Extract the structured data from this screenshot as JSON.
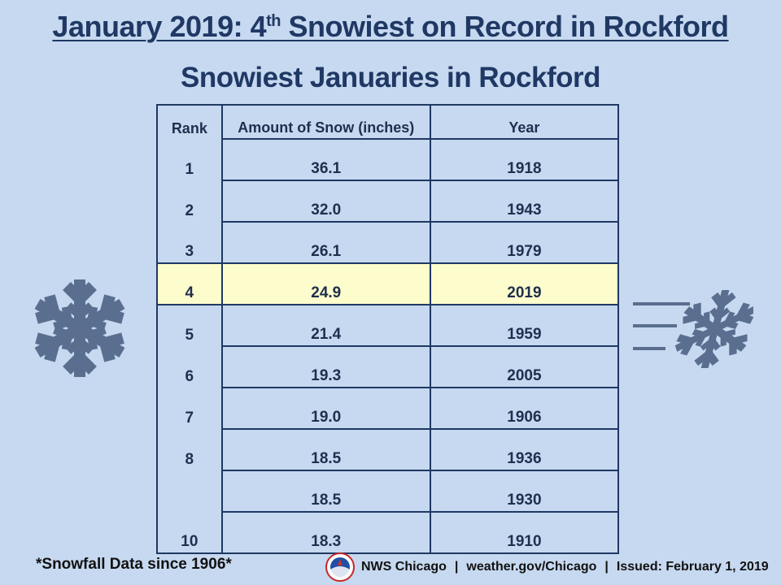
{
  "header": {
    "title_prefix": "January 2019: 4",
    "title_sup": "th",
    "title_suffix": " Snowiest on Record in Rockford",
    "subtitle": "Snowiest Januaries in Rockford"
  },
  "table": {
    "columns": [
      "Rank",
      "Amount of Snow (inches)",
      "Year"
    ],
    "rows": [
      {
        "rank": "1",
        "amount": "36.1",
        "year": "1918"
      },
      {
        "rank": "2",
        "amount": "32.0",
        "year": "1943"
      },
      {
        "rank": "3",
        "amount": "26.1",
        "year": "1979"
      },
      {
        "rank": "4",
        "amount": "24.9",
        "year": "2019"
      },
      {
        "rank": "5",
        "amount": "21.4",
        "year": "1959"
      },
      {
        "rank": "6",
        "amount": "19.3",
        "year": "2005"
      },
      {
        "rank": "7",
        "amount": "19.0",
        "year": "1906"
      },
      {
        "rank": "8",
        "amount": "18.5",
        "year": "1936"
      },
      {
        "rank": "",
        "amount": "18.5",
        "year": "1930"
      },
      {
        "rank": "10",
        "amount": "18.3",
        "year": "1910"
      }
    ],
    "highlight_color": "#fdfccc"
  },
  "footer": {
    "footnote": "*Snowfall Data since 1906*",
    "office": "NWS Chicago",
    "website": "weather.gov/Chicago",
    "issued": "Issued:  February 1, 2019",
    "separator": "|"
  },
  "icons": {
    "left": "snowflake-icon",
    "right": "wind-snowflake-icon",
    "logo": "nws-logo-icon"
  },
  "colors": {
    "background": "#c6d9f0",
    "title": "#1f3864",
    "icon": "#5a6f8f"
  }
}
